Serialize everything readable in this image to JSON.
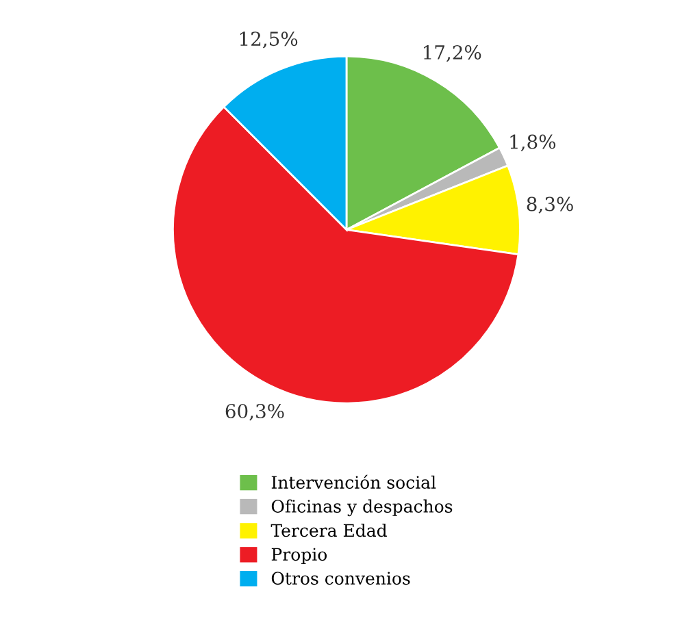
{
  "chart_data": {
    "type": "pie",
    "categories": [
      "Intervención social",
      "Oficinas y despachos",
      "Tercera Edad",
      "Propio",
      "Otros convenios"
    ],
    "values": [
      17.2,
      1.8,
      8.3,
      60.3,
      12.5
    ],
    "value_labels": [
      "17,2%",
      "1,8%",
      "8,3%",
      "60,3%",
      "12,5%"
    ],
    "colors": [
      "#6dbf4b",
      "#b9b9b9",
      "#fff200",
      "#ed1c24",
      "#00aeef"
    ],
    "legend": "bottom"
  }
}
